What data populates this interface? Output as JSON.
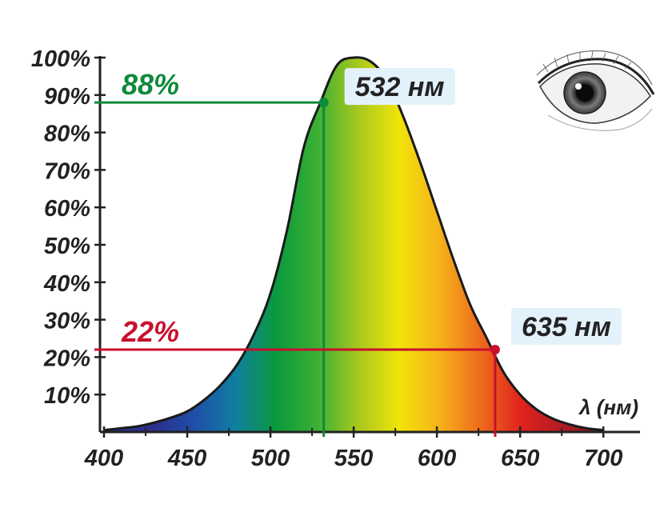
{
  "chart_data": {
    "type": "area",
    "title": "",
    "xlabel": "λ (нм)",
    "ylabel": "",
    "xlim": [
      400,
      710
    ],
    "ylim": [
      0,
      100
    ],
    "x_ticks": [
      "400",
      "450",
      "500",
      "550",
      "600",
      "650",
      "700"
    ],
    "y_ticks": [
      "10%",
      "20%",
      "30%",
      "40%",
      "50%",
      "60%",
      "70%",
      "80%",
      "90%",
      "100%"
    ],
    "grid": false,
    "series": [
      {
        "x": [
          400,
          410,
          420,
          430,
          440,
          450,
          460,
          470,
          480,
          490,
          500,
          510,
          520,
          530,
          540,
          550,
          560,
          570,
          580,
          590,
          600,
          610,
          620,
          630,
          640,
          650,
          660,
          670,
          680,
          690,
          700
        ],
        "values": [
          0.5,
          1,
          1.5,
          2.5,
          3.8,
          5.5,
          8.5,
          12.5,
          18,
          26,
          37,
          54,
          76,
          88,
          98,
          100,
          99,
          94,
          84,
          72,
          59,
          46,
          34,
          25,
          16,
          10,
          6,
          3.5,
          2,
          1,
          0.5
        ]
      }
    ],
    "annotations": [
      {
        "x": 532,
        "y": 88,
        "percent_label": "88%",
        "wavelength_label": "532 нм",
        "color": "#0f8a3c"
      },
      {
        "x": 635,
        "y": 22,
        "percent_label": "22%",
        "wavelength_label": "635 нм",
        "color": "#c8102e"
      }
    ],
    "icon": "eye-icon",
    "colors": {
      "axis": "#222222",
      "curve_outline": "#1a1a1a",
      "label_box": "#e3f1fb",
      "spectrum": [
        "#2b2e8c",
        "#1f4fa8",
        "#0f7fa0",
        "#0a9a3c",
        "#3cb034",
        "#a8c81e",
        "#f1e40a",
        "#f5b21a",
        "#ee6a1c",
        "#e0221e",
        "#b01c22",
        "#6e1a1e"
      ]
    }
  }
}
